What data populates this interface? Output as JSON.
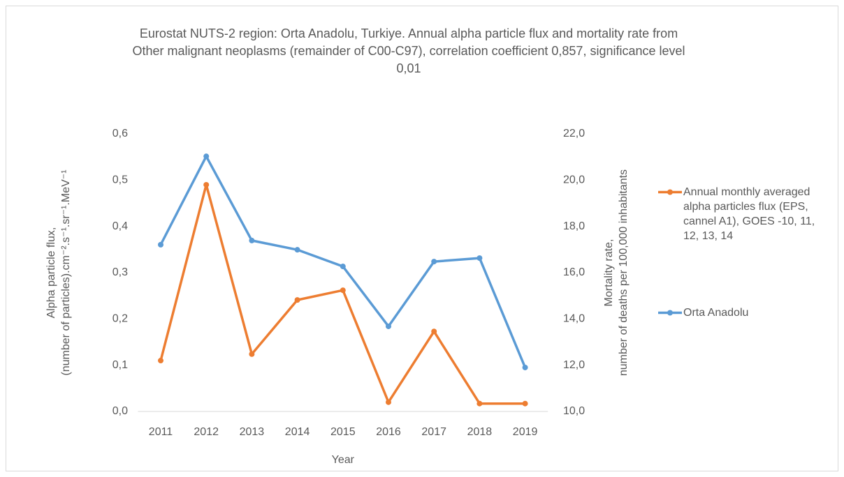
{
  "chart_data": {
    "type": "line",
    "title": "Eurostat NUTS-2 region: Orta Anadolu, Turkiye. Annual alpha particle flux and mortality rate from Other malignant neoplasms (remainder of C00-C97), correlation coefficient 0,857, significance level 0,01",
    "xlabel": "Year",
    "ylabel": [
      "Alpha particle flux,",
      "(number of particles).cm⁻².s⁻¹.sr⁻¹.MeV⁻¹"
    ],
    "y2label": [
      "Mortality rate,",
      "number of deaths per 100,000 inhabitants"
    ],
    "categories": [
      "2011",
      "2012",
      "2013",
      "2014",
      "2015",
      "2016",
      "2017",
      "2018",
      "2019"
    ],
    "series": [
      {
        "name": "Annual monthly averaged alpha particles flux (EPS, cannel A1), GOES -10, 11, 12, 13, 14",
        "color": "#ed7d31",
        "axis": "y",
        "values": [
          0.11,
          0.49,
          0.124,
          0.241,
          0.262,
          0.02,
          0.173,
          0.017,
          0.017
        ]
      },
      {
        "name": "Orta Anadolu",
        "color": "#5b9bd5",
        "axis": "y2",
        "values": [
          17.21,
          21.03,
          17.39,
          16.99,
          16.27,
          13.68,
          16.48,
          16.63,
          11.9
        ]
      }
    ],
    "ylim": [
      0,
      0.6
    ],
    "yticks": [
      {
        "value": 0,
        "label": "0,0"
      },
      {
        "value": 0.1,
        "label": "0,1"
      },
      {
        "value": 0.2,
        "label": "0,2"
      },
      {
        "value": 0.3,
        "label": "0,3"
      },
      {
        "value": 0.4,
        "label": "0,4"
      },
      {
        "value": 0.5,
        "label": "0,5"
      },
      {
        "value": 0.6,
        "label": "0,6"
      }
    ],
    "y2lim": [
      10,
      22
    ],
    "y2ticks": [
      {
        "value": 10,
        "label": "10,0"
      },
      {
        "value": 12,
        "label": "12,0"
      },
      {
        "value": 14,
        "label": "14,0"
      },
      {
        "value": 16,
        "label": "16,0"
      },
      {
        "value": 18,
        "label": "18,0"
      },
      {
        "value": 20,
        "label": "20,0"
      },
      {
        "value": 22,
        "label": "22,0"
      }
    ],
    "grid": false,
    "legend": "right"
  }
}
